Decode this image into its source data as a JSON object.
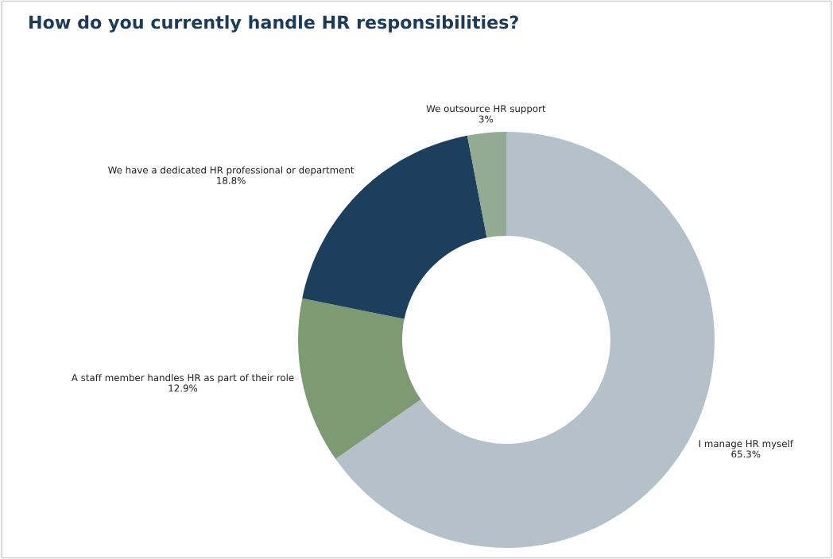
{
  "chart_data": {
    "type": "donut",
    "title": "How do you currently handle HR responsibilities?",
    "categories": [
      "I manage HR myself",
      "A staff member handles HR as part of their role",
      "We have a dedicated HR professional or department",
      "We outsource HR support"
    ],
    "values": [
      65.3,
      12.9,
      18.8,
      3
    ],
    "value_labels": [
      "65.3%",
      "12.9%",
      "18.8%",
      "3%"
    ],
    "colors": [
      "#b5c1c9",
      "#7d9a72",
      "#1c3f5e",
      "#92ab92"
    ],
    "legend": false
  }
}
